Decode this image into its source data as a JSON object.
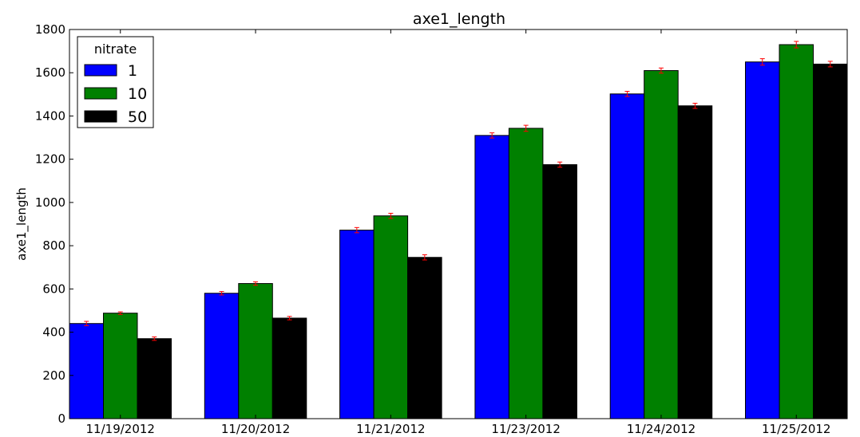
{
  "chart_data": {
    "type": "bar",
    "title": "axe1_length",
    "xlabel": "",
    "ylabel": "axe1_length",
    "ylim": [
      0,
      1800
    ],
    "yticks": [
      0,
      200,
      400,
      600,
      800,
      1000,
      1200,
      1400,
      1600,
      1800
    ],
    "categories": [
      "11/19/2012",
      "11/20/2012",
      "11/21/2012",
      "11/23/2012",
      "11/24/2012",
      "11/25/2012"
    ],
    "legend": {
      "title": "nitrate",
      "placement": "top-left"
    },
    "series": [
      {
        "name": "1",
        "color": "#0000ff",
        "values": [
          440,
          580,
          872,
          1310,
          1502,
          1650
        ],
        "errors": [
          10,
          8,
          12,
          12,
          12,
          15
        ]
      },
      {
        "name": "10",
        "color": "#008000",
        "values": [
          488,
          625,
          938,
          1343,
          1610,
          1730
        ],
        "errors": [
          6,
          8,
          12,
          14,
          12,
          15
        ]
      },
      {
        "name": "50",
        "color": "#000000",
        "values": [
          370,
          465,
          746,
          1175,
          1447,
          1640
        ],
        "errors": [
          8,
          8,
          12,
          12,
          12,
          13
        ]
      }
    ],
    "error_bar_color": "#ff0000",
    "grid": false
  }
}
